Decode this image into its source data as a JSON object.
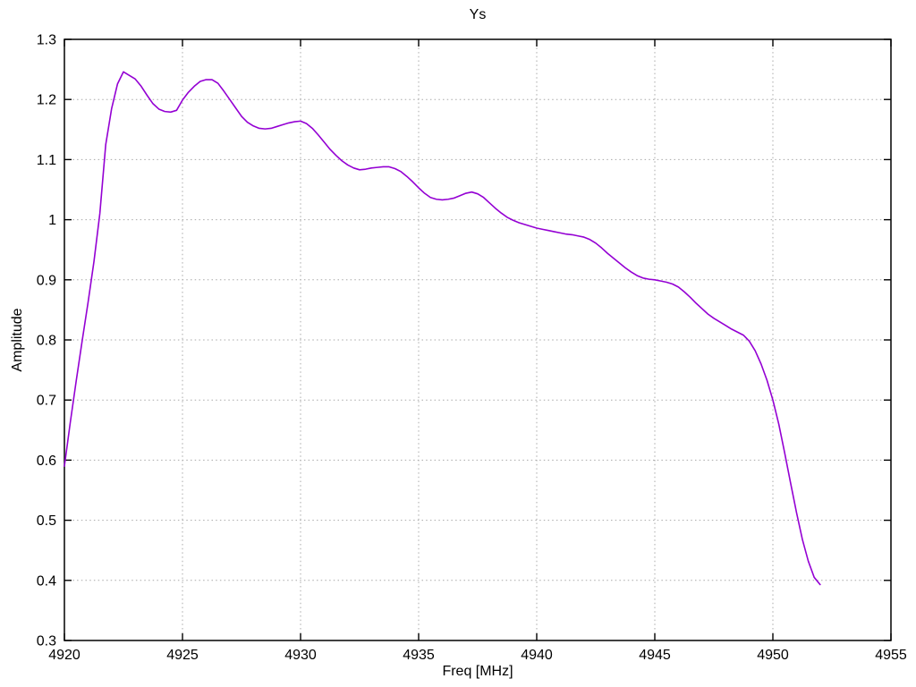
{
  "chart_data": {
    "type": "line",
    "title": "Ys",
    "xlabel": "Freq [MHz]",
    "ylabel": "Amplitude",
    "xlim": [
      4920,
      4955
    ],
    "ylim": [
      0.3,
      1.3
    ],
    "x_ticks": [
      4920,
      4925,
      4930,
      4935,
      4940,
      4945,
      4950,
      4955
    ],
    "x_tick_labels": [
      "4920",
      "4925",
      "4930",
      "4935",
      "4940",
      "4945",
      "4950",
      "4955"
    ],
    "y_ticks": [
      0.3,
      0.4,
      0.5,
      0.6,
      0.7,
      0.8,
      0.9,
      1.0,
      1.1,
      1.2,
      1.3
    ],
    "y_tick_labels": [
      "0.3",
      "0.4",
      "0.5",
      "0.6",
      "0.7",
      "0.8",
      "0.9",
      "1",
      "1.1",
      "1.2",
      "1.3"
    ],
    "grid": true,
    "grid_style": "dotted",
    "legend_position": "none",
    "colors": {
      "line": "#9400d3",
      "grid": "#a8a8a8",
      "axis": "#000000",
      "background": "#ffffff",
      "text": "#000000"
    },
    "series": [
      {
        "name": "Ys",
        "color": "#9400d3",
        "x_start": 4920.0,
        "x_step": 0.25,
        "x_end": 4952.0,
        "values": [
          0.59,
          0.663,
          0.732,
          0.798,
          0.862,
          0.93,
          1.01,
          1.125,
          1.185,
          1.226,
          1.246,
          1.24,
          1.234,
          1.222,
          1.207,
          1.193,
          1.184,
          1.18,
          1.179,
          1.182,
          1.199,
          1.212,
          1.222,
          1.23,
          1.233,
          1.233,
          1.227,
          1.214,
          1.2,
          1.186,
          1.172,
          1.162,
          1.156,
          1.152,
          1.151,
          1.152,
          1.155,
          1.158,
          1.161,
          1.163,
          1.164,
          1.16,
          1.152,
          1.141,
          1.129,
          1.117,
          1.107,
          1.098,
          1.091,
          1.086,
          1.083,
          1.084,
          1.086,
          1.087,
          1.088,
          1.088,
          1.085,
          1.08,
          1.072,
          1.063,
          1.053,
          1.044,
          1.037,
          1.034,
          1.033,
          1.034,
          1.036,
          1.04,
          1.044,
          1.046,
          1.043,
          1.037,
          1.028,
          1.019,
          1.011,
          1.004,
          0.999,
          0.995,
          0.992,
          0.989,
          0.986,
          0.984,
          0.982,
          0.98,
          0.978,
          0.976,
          0.975,
          0.973,
          0.971,
          0.967,
          0.961,
          0.953,
          0.944,
          0.936,
          0.928,
          0.92,
          0.913,
          0.907,
          0.903,
          0.901,
          0.9,
          0.898,
          0.896,
          0.893,
          0.888,
          0.88,
          0.871,
          0.861,
          0.852,
          0.843,
          0.836,
          0.83,
          0.824,
          0.818,
          0.813,
          0.808,
          0.798,
          0.782,
          0.76,
          0.733,
          0.7,
          0.66,
          0.612,
          0.562,
          0.513,
          0.468,
          0.432,
          0.405,
          0.393
        ]
      }
    ]
  }
}
